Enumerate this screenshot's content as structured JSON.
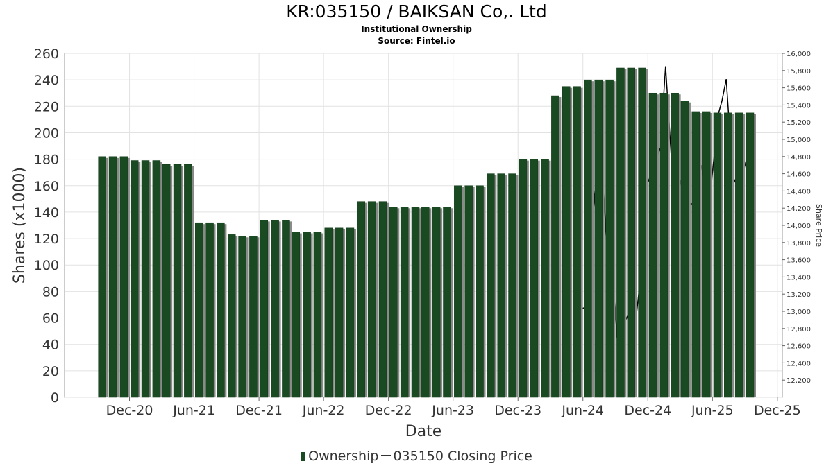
{
  "header": {
    "title": "KR:035150 / BAIKSAN Co,. Ltd",
    "subtitle": "Institutional Ownership",
    "source": "Source: Fintel.io"
  },
  "legend": {
    "ownership_label": "Ownership",
    "price_label": "035150 Closing Price"
  },
  "colors": {
    "bar": "#1a4a22",
    "bar_shadow": "#8a8a8a",
    "price_line": "#000000",
    "grid": "#e2e2e2"
  },
  "chart_data": {
    "type": "bar",
    "xlabel": "Date",
    "ylabel": "Shares (x1000)",
    "y2label": "Share Price",
    "ylim": [
      0,
      260
    ],
    "y2lim": [
      12000,
      16000
    ],
    "yticks": [
      0,
      20,
      40,
      60,
      80,
      100,
      120,
      140,
      160,
      180,
      200,
      220,
      240,
      260
    ],
    "y2ticks": [
      12200,
      12400,
      12600,
      12800,
      13000,
      13200,
      13400,
      13600,
      13800,
      14000,
      14200,
      14400,
      14600,
      14800,
      15000,
      15200,
      15400,
      15600,
      15800,
      16000
    ],
    "y2ticklabels": [
      "12,200",
      "12,400",
      "12,600",
      "12,800",
      "13,000",
      "13,200",
      "13,400",
      "13,600",
      "13,800",
      "14,000",
      "14,200",
      "14,400",
      "14,600",
      "14,800",
      "15,000",
      "15,200",
      "15,400",
      "15,600",
      "15,800",
      "16,000"
    ],
    "xlim": [
      "2020-06-01",
      "2025-12-15"
    ],
    "xticks": [
      "2020-12-01",
      "2021-06-01",
      "2021-12-01",
      "2022-06-01",
      "2022-12-01",
      "2023-06-01",
      "2023-12-01",
      "2024-06-01",
      "2024-12-01",
      "2025-06-01",
      "2025-12-01"
    ],
    "xticklabels": [
      "Dec-20",
      "Jun-21",
      "Dec-21",
      "Jun-22",
      "Dec-22",
      "Jun-23",
      "Dec-23",
      "Jun-24",
      "Dec-24",
      "Jun-25",
      "Dec-25"
    ],
    "grid": true,
    "legend_position": "bottom",
    "series": [
      {
        "name": "Ownership",
        "dates": [
          "2020-09-15",
          "2020-10-15",
          "2020-11-15",
          "2020-12-15",
          "2021-01-15",
          "2021-02-15",
          "2021-03-15",
          "2021-04-15",
          "2021-05-15",
          "2021-06-15",
          "2021-07-15",
          "2021-08-15",
          "2021-09-15",
          "2021-10-15",
          "2021-11-15",
          "2021-12-15",
          "2022-01-15",
          "2022-02-15",
          "2022-03-15",
          "2022-04-15",
          "2022-05-15",
          "2022-06-15",
          "2022-07-15",
          "2022-08-15",
          "2022-09-15",
          "2022-10-15",
          "2022-11-15",
          "2022-12-15",
          "2023-01-15",
          "2023-02-15",
          "2023-03-15",
          "2023-04-15",
          "2023-05-15",
          "2023-06-15",
          "2023-07-15",
          "2023-08-15",
          "2023-09-15",
          "2023-10-15",
          "2023-11-15",
          "2023-12-15",
          "2024-01-15",
          "2024-02-15",
          "2024-03-15",
          "2024-04-15",
          "2024-05-15",
          "2024-06-15",
          "2024-07-15",
          "2024-08-15",
          "2024-09-15",
          "2024-10-15",
          "2024-11-15",
          "2024-12-15",
          "2025-01-15",
          "2025-02-15",
          "2025-03-15",
          "2025-04-15",
          "2025-05-15",
          "2025-06-15",
          "2025-07-15",
          "2025-08-15",
          "2025-09-15"
        ],
        "values": [
          182,
          182,
          182,
          179,
          179,
          179,
          176,
          176,
          176,
          132,
          132,
          132,
          123,
          122,
          122,
          134,
          134,
          134,
          125,
          125,
          125,
          128,
          128,
          128,
          148,
          148,
          148,
          144,
          144,
          144,
          144,
          144,
          144,
          160,
          160,
          160,
          169,
          169,
          169,
          180,
          180,
          180,
          228,
          235,
          235,
          240,
          240,
          240,
          249,
          249,
          249,
          230,
          230,
          230,
          224,
          216,
          216,
          215,
          215,
          215,
          215
        ]
      },
      {
        "name": "035150 Closing Price",
        "points": [
          [
            "2024-05-05",
            13900
          ],
          [
            "2024-05-10",
            13600
          ],
          [
            "2024-05-20",
            13150
          ],
          [
            "2024-05-28",
            13030
          ],
          [
            "2024-06-10",
            13050
          ],
          [
            "2024-06-20",
            13000
          ],
          [
            "2024-07-01",
            14200
          ],
          [
            "2024-07-08",
            14550
          ],
          [
            "2024-07-18",
            14550
          ],
          [
            "2024-07-28",
            14500
          ],
          [
            "2024-08-05",
            13900
          ],
          [
            "2024-08-15",
            13350
          ],
          [
            "2024-08-25",
            13450
          ],
          [
            "2024-09-05",
            12700
          ],
          [
            "2024-09-12",
            12600
          ],
          [
            "2024-09-25",
            12850
          ],
          [
            "2024-10-05",
            12950
          ],
          [
            "2024-10-15",
            12950
          ],
          [
            "2024-10-28",
            12900
          ],
          [
            "2024-11-08",
            13300
          ],
          [
            "2024-11-20",
            14480
          ],
          [
            "2024-12-01",
            14500
          ],
          [
            "2024-12-10",
            14600
          ],
          [
            "2024-12-18",
            14700
          ],
          [
            "2025-01-05",
            14900
          ],
          [
            "2025-01-20",
            15850
          ],
          [
            "2025-02-05",
            14800
          ],
          [
            "2025-02-18",
            14650
          ],
          [
            "2025-03-01",
            14550
          ],
          [
            "2025-03-15",
            14300
          ],
          [
            "2025-03-25",
            14250
          ],
          [
            "2025-04-05",
            14250
          ],
          [
            "2025-04-18",
            14500
          ],
          [
            "2025-05-01",
            14700
          ],
          [
            "2025-05-15",
            14350
          ],
          [
            "2025-05-28",
            14450
          ],
          [
            "2025-06-08",
            14900
          ],
          [
            "2025-06-18",
            15300
          ],
          [
            "2025-06-28",
            15450
          ],
          [
            "2025-07-10",
            15700
          ],
          [
            "2025-07-18",
            15200
          ],
          [
            "2025-07-25",
            14600
          ],
          [
            "2025-08-05",
            14500
          ],
          [
            "2025-08-15",
            14450
          ],
          [
            "2025-09-01",
            14700
          ],
          [
            "2025-09-10",
            14850
          ]
        ]
      }
    ]
  }
}
